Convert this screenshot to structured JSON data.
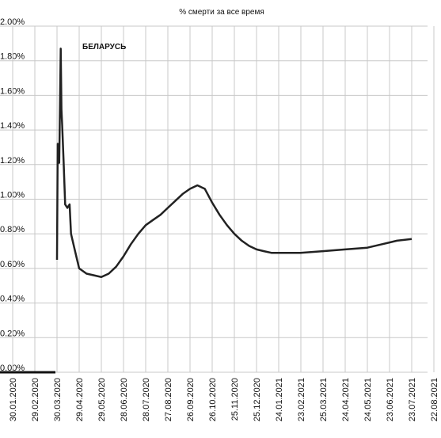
{
  "chart_data": {
    "type": "line",
    "title": "% смерти за все время",
    "xlim": [
      "30.01.2020",
      "22.08.2021"
    ],
    "xticks": [
      "30.01.2020",
      "29.02.2020",
      "30.03.2020",
      "29.04.2020",
      "29.05.2020",
      "28.06.2020",
      "28.07.2020",
      "27.08.2020",
      "26.09.2020",
      "26.10.2020",
      "25.11.2020",
      "25.12.2020",
      "24.01.2021",
      "23.02.2021",
      "25.03.2021",
      "24.04.2021",
      "24.05.2021",
      "23.06.2021",
      "23.07.2021",
      "22.08.2021"
    ],
    "ylim": [
      0,
      2
    ],
    "yticks": [
      {
        "value": 0,
        "label": "0.00%"
      },
      {
        "value": 0.2,
        "label": "0.20%"
      },
      {
        "value": 0.4,
        "label": "0.40%"
      },
      {
        "value": 0.6,
        "label": "0.60%"
      },
      {
        "value": 0.8,
        "label": "0.80%"
      },
      {
        "value": 1.0,
        "label": "1.00%"
      },
      {
        "value": 1.2,
        "label": "1.20%"
      },
      {
        "value": 1.4,
        "label": "1.40%"
      },
      {
        "value": 1.6,
        "label": "1.60%"
      },
      {
        "value": 1.8,
        "label": "1.80%"
      },
      {
        "value": 2.0,
        "label": "2.00%"
      }
    ],
    "grid": true,
    "x": [
      "30.03.2020",
      "31.03.2020",
      "02.04.2020",
      "04.04.2020",
      "05.04.2020",
      "06.04.2020",
      "08.04.2020",
      "10.04.2020",
      "13.04.2020",
      "16.04.2020",
      "18.04.2020",
      "24.04.2020",
      "29.04.2020",
      "09.05.2020",
      "19.05.2020",
      "29.05.2020",
      "08.06.2020",
      "18.06.2020",
      "28.06.2020",
      "08.07.2020",
      "18.07.2020",
      "28.07.2020",
      "07.08.2020",
      "17.08.2020",
      "27.08.2020",
      "06.09.2020",
      "16.09.2020",
      "26.09.2020",
      "06.10.2020",
      "16.10.2020",
      "26.10.2020",
      "05.11.2020",
      "15.11.2020",
      "25.11.2020",
      "05.12.2020",
      "15.12.2020",
      "25.12.2020",
      "04.01.2021",
      "14.01.2021",
      "24.01.2021",
      "23.02.2021",
      "25.03.2021",
      "24.04.2021",
      "24.05.2021",
      "13.06.2021",
      "23.06.2021",
      "03.07.2021",
      "23.07.2021"
    ],
    "series": [
      {
        "name": "БЕЛАРУСЬ",
        "color": "#222222",
        "values": [
          0.65,
          1.32,
          1.21,
          1.87,
          1.52,
          1.43,
          1.21,
          0.97,
          0.95,
          0.97,
          0.8,
          0.69,
          0.6,
          0.57,
          0.56,
          0.55,
          0.57,
          0.61,
          0.67,
          0.74,
          0.8,
          0.85,
          0.88,
          0.91,
          0.95,
          0.99,
          1.03,
          1.06,
          1.08,
          1.06,
          0.98,
          0.91,
          0.85,
          0.8,
          0.76,
          0.73,
          0.71,
          0.7,
          0.69,
          0.69,
          0.69,
          0.7,
          0.71,
          0.72,
          0.74,
          0.75,
          0.76,
          0.77
        ]
      }
    ]
  }
}
